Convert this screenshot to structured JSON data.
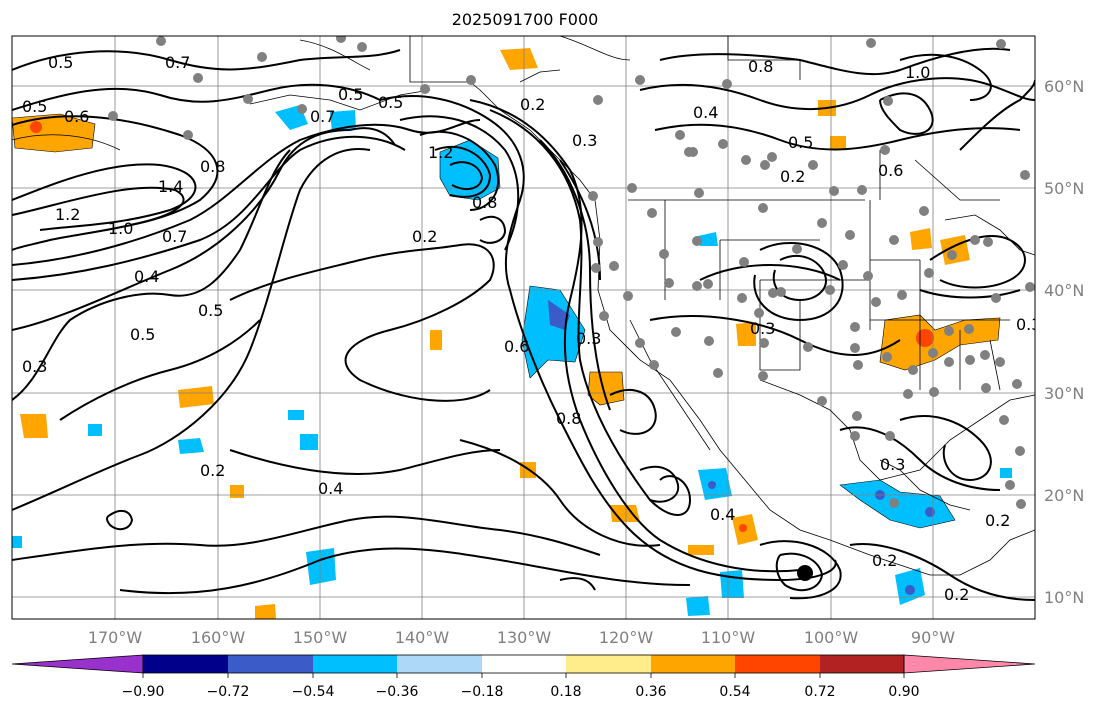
{
  "title": "2025091700 F000",
  "map": {
    "lon_labels": [
      "170°W",
      "160°W",
      "150°W",
      "140°W",
      "130°W",
      "120°W",
      "110°W",
      "100°W",
      "90°W"
    ],
    "lat_labels": [
      "60°N",
      "50°N",
      "40°N",
      "30°N",
      "20°N",
      "10°N"
    ],
    "contour_labels": [
      "0.5",
      "0.7",
      "0.5",
      "0.6",
      "0.8",
      "1.4",
      "1.2",
      "1.0",
      "0.7",
      "0.4",
      "0.5",
      "0.5",
      "0.3",
      "0.7",
      "0.5",
      "0.5",
      "1.2",
      "0.8",
      "0.2",
      "0.2",
      "0.3",
      "0.6",
      "0.8",
      "0.3",
      "0.4",
      "0.2",
      "0.4",
      "0.3",
      "0.3",
      "0.8",
      "0.4",
      "0.5",
      "0.2",
      "0.6",
      "1.0",
      "0.3",
      "0.2",
      "0.2",
      "0.2"
    ],
    "colors": {
      "contour": "#000000",
      "grid": "#808080",
      "station_dot": "#808080"
    }
  },
  "colorbar": {
    "ticks": [
      "−0.90",
      "−0.72",
      "−0.54",
      "−0.36",
      "−0.18",
      "0.18",
      "0.36",
      "0.54",
      "0.72",
      "0.90"
    ],
    "colors": [
      "#9932cc",
      "#00008b",
      "#3a5bc8",
      "#00bfff",
      "#add8f7",
      "#ffffff",
      "#ffec8b",
      "#ffa500",
      "#ff4500",
      "#b22222",
      "#ff88aa"
    ]
  }
}
